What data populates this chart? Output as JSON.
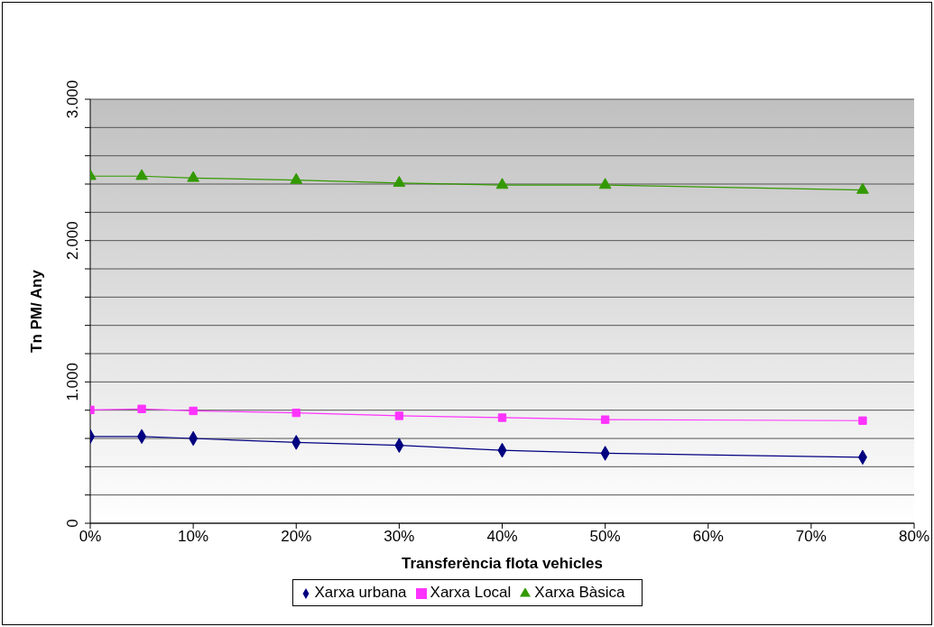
{
  "chart_data": {
    "type": "line",
    "xlabel": "Transferència flota vehicles",
    "ylabel": "Tn PM/ Any",
    "x": [
      0,
      5,
      10,
      20,
      30,
      40,
      50,
      75
    ],
    "series": [
      {
        "name": "Xarxa urbana",
        "color": "#000080",
        "marker": "diamond",
        "values": [
          614,
          614,
          600,
          572,
          551,
          516,
          495,
          467
        ]
      },
      {
        "name": "Xarxa Local",
        "color": "#ff33ff",
        "marker": "square",
        "values": [
          802,
          809,
          795,
          781,
          760,
          747,
          733,
          726
        ]
      },
      {
        "name": "Xarxa Bàsica",
        "color": "#339900",
        "marker": "triangle",
        "values": [
          2456,
          2456,
          2442,
          2428,
          2407,
          2393,
          2393,
          2358
        ]
      }
    ],
    "xlim": [
      0,
      80
    ],
    "xticks": [
      {
        "value": 0,
        "label": "0%"
      },
      {
        "value": 10,
        "label": "10%"
      },
      {
        "value": 20,
        "label": "20%"
      },
      {
        "value": 30,
        "label": "30%"
      },
      {
        "value": 40,
        "label": "40%"
      },
      {
        "value": 50,
        "label": "50%"
      },
      {
        "value": 60,
        "label": "60%"
      },
      {
        "value": 70,
        "label": "70%"
      },
      {
        "value": 80,
        "label": "80%"
      }
    ],
    "ylim": [
      0,
      3000
    ],
    "yticks": [
      0,
      {
        "value": 200,
        "label": null
      },
      {
        "value": 400,
        "label": null
      },
      {
        "value": 600,
        "label": null
      },
      {
        "value": 800,
        "label": null
      },
      {
        "value": 1000,
        "label": "1.000"
      },
      {
        "value": 1200,
        "label": null
      },
      {
        "value": 1400,
        "label": null
      },
      {
        "value": 1600,
        "label": null
      },
      {
        "value": 1800,
        "label": null
      },
      {
        "value": 2000,
        "label": "2.000"
      },
      {
        "value": 2200,
        "label": null
      },
      {
        "value": 2400,
        "label": null
      },
      {
        "value": 2600,
        "label": null
      },
      {
        "value": 2800,
        "label": null
      },
      {
        "value": 3000,
        "label": "3.000"
      }
    ],
    "grid": "y",
    "legend": "bottom"
  }
}
